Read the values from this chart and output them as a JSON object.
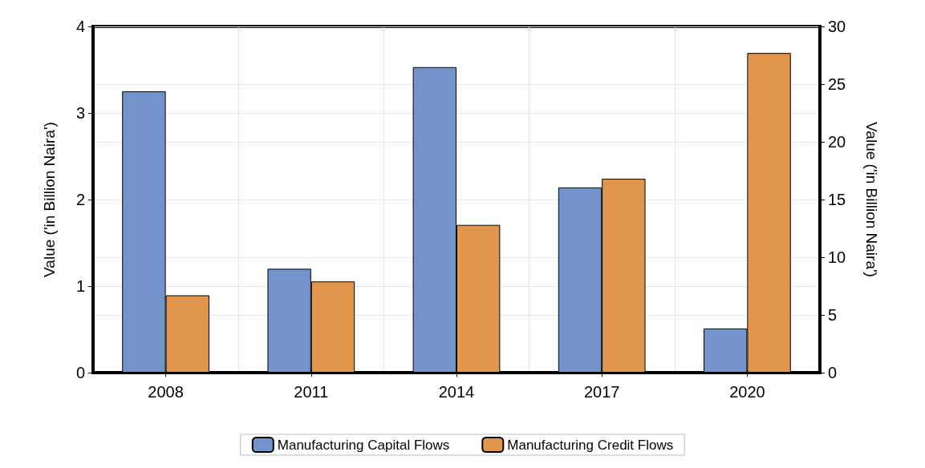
{
  "chart_data": {
    "type": "bar",
    "ylabel": "Value ('in Billion Naira')",
    "y2label": "Value ('in Billion Naira')",
    "categories": [
      "2008",
      "2011",
      "2014",
      "2017",
      "2020"
    ],
    "series": [
      {
        "name": "Manufacturing Capital Flows",
        "color": "#7294cb",
        "values": [
          3.25,
          1.2,
          3.53,
          2.14,
          0.51
        ]
      },
      {
        "name": "Manufacturing Credit Flows",
        "color": "#e0974c",
        "axis": "y2",
        "values": [
          6.7,
          7.9,
          12.8,
          16.8,
          27.7
        ]
      }
    ],
    "ylim": [
      0,
      4
    ],
    "yticks": [
      0,
      1,
      2,
      3,
      4
    ],
    "y2lim": [
      0,
      30
    ],
    "y2ticks": [
      0,
      5,
      10,
      15,
      20,
      25,
      30
    ],
    "grid": true,
    "legend": "bottom"
  }
}
